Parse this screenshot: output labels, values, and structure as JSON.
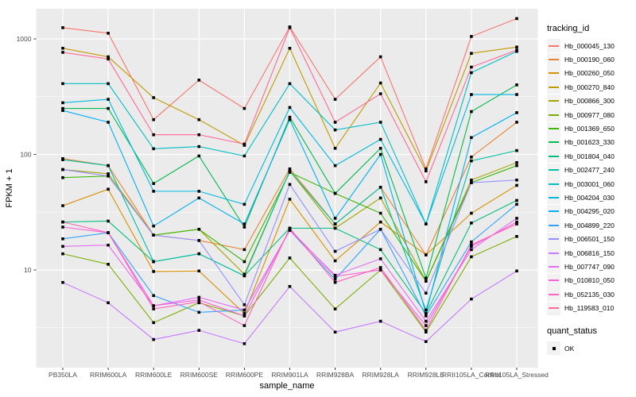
{
  "chart_data": {
    "type": "line",
    "title": "",
    "xlabel": "sample_name",
    "ylabel": "FPKM + 1",
    "x_categories": [
      "PB350LA",
      "RRIM600LA",
      "RRIM600LE",
      "RRIM600SE",
      "RRIM600PE",
      "RRIM901LA",
      "RRIM928BA",
      "RRIM928LA",
      "RRIM928LE",
      "RRII105LA_Control",
      "RRII105LA_Stressed"
    ],
    "y_scale": "log10",
    "y_ticks": [
      10,
      100,
      1000
    ],
    "y_minor_ticks_log": [
      0.5,
      1.5,
      2.5
    ],
    "y_range_log": [
      0.16,
      3.26
    ],
    "legend": {
      "title": "tracking_id"
    },
    "legend2": {
      "title": "quant_status",
      "items": [
        {
          "label": "OK",
          "marker": "black-square"
        }
      ]
    },
    "series": [
      {
        "name": "Hb_000045_130",
        "color": "#F8766D",
        "values": [
          1250,
          1120,
          200,
          440,
          250,
          1270,
          300,
          700,
          75,
          1050,
          1500
        ]
      },
      {
        "name": "Hb_000190_060",
        "color": "#EA8331",
        "values": [
          92,
          80,
          20,
          18,
          15,
          75,
          25,
          52,
          13.5,
          95,
          190
        ]
      },
      {
        "name": "Hb_000260_050",
        "color": "#D89000",
        "values": [
          36,
          50,
          9.7,
          9.8,
          4.2,
          41,
          12,
          26,
          13.5,
          31,
          54
        ]
      },
      {
        "name": "Hb_000270_840",
        "color": "#C09B00",
        "values": [
          830,
          700,
          310,
          200,
          120,
          830,
          113,
          415,
          72,
          750,
          850
        ]
      },
      {
        "name": "Hb_000866_300",
        "color": "#A3A500",
        "values": [
          74,
          68,
          20,
          22.5,
          9.2,
          72,
          23,
          42,
          8,
          60,
          85
        ]
      },
      {
        "name": "Hb_000977_080",
        "color": "#7CAE00",
        "values": [
          13.8,
          11.2,
          3.5,
          5.2,
          4,
          12.7,
          4.6,
          10,
          2.9,
          13,
          19.5
        ]
      },
      {
        "name": "Hb_001369_650",
        "color": "#39B600",
        "values": [
          63,
          65,
          20,
          22.5,
          11.8,
          70,
          46,
          31,
          8,
          57,
          80
        ]
      },
      {
        "name": "Hb_001623_330",
        "color": "#00BB4E",
        "values": [
          250,
          250,
          56,
          97,
          23.5,
          210,
          46,
          113,
          8.5,
          235,
          400
        ]
      },
      {
        "name": "Hb_001804_040",
        "color": "#00BF7D",
        "values": [
          26,
          26.5,
          11.8,
          13.8,
          8.9,
          23,
          23,
          15,
          4.2,
          25.5,
          40
        ]
      },
      {
        "name": "Hb_002477_240",
        "color": "#00C1A3",
        "values": [
          90,
          80,
          11.8,
          13.8,
          8.9,
          72,
          25,
          52,
          4.5,
          88,
          108
        ]
      },
      {
        "name": "Hb_003001_060",
        "color": "#00BFC4",
        "values": [
          410,
          410,
          112,
          117,
          97,
          410,
          163,
          190,
          25,
          510,
          780
        ]
      },
      {
        "name": "Hb_004204_030",
        "color": "#00BAE0",
        "values": [
          280,
          300,
          48,
          48,
          37,
          255,
          80,
          135,
          25,
          330,
          330
        ]
      },
      {
        "name": "Hb_004295_020",
        "color": "#00B0F6",
        "values": [
          240,
          190,
          24,
          42,
          25,
          200,
          28,
          100,
          4.2,
          140,
          230
        ]
      },
      {
        "name": "Hb_004899_220",
        "color": "#35A2FF",
        "values": [
          18.6,
          21,
          6,
          4.3,
          4.5,
          22,
          8.3,
          22.5,
          4,
          17.5,
          37
        ]
      },
      {
        "name": "Hb_006501_150",
        "color": "#9590FF",
        "values": [
          74,
          65,
          20,
          18,
          5,
          55,
          14.5,
          22.5,
          6.3,
          57,
          60
        ]
      },
      {
        "name": "Hb_006816_150",
        "color": "#C77CFF",
        "values": [
          7.8,
          5.2,
          2.5,
          3,
          2.3,
          7.2,
          2.9,
          3.6,
          2.4,
          5.6,
          9.8
        ]
      },
      {
        "name": "Hb_007747_090",
        "color": "#E76BF3",
        "values": [
          16,
          16.4,
          4.9,
          5.8,
          4.5,
          22,
          9,
          12.5,
          3.6,
          15,
          28
        ]
      },
      {
        "name": "Hb_010810_050",
        "color": "#FA62DB",
        "values": [
          23.5,
          21,
          4.9,
          5.5,
          4,
          22.5,
          8.8,
          10,
          3.3,
          16,
          26
        ]
      },
      {
        "name": "Hb_052135_030",
        "color": "#FF62BC",
        "values": [
          26,
          21,
          4.6,
          5.3,
          3.3,
          23,
          7.8,
          10.5,
          3,
          16.5,
          25
        ]
      },
      {
        "name": "Hb_119583_010",
        "color": "#FF6A98",
        "values": [
          765,
          670,
          148,
          148,
          123,
          1250,
          190,
          335,
          58,
          570,
          800
        ]
      }
    ],
    "colors": {
      "panel_bg": "#EBEBEB",
      "grid_major": "#FFFFFF",
      "grid_minor": "#FFFFFF",
      "point": "#000000",
      "tick_label": "#4D4D4D",
      "axis_title": "#000000",
      "legend_key_bg": "#F2F2F2",
      "tick_mark": "#333333"
    },
    "layout": {
      "legend_position": "right",
      "grid": true
    }
  }
}
